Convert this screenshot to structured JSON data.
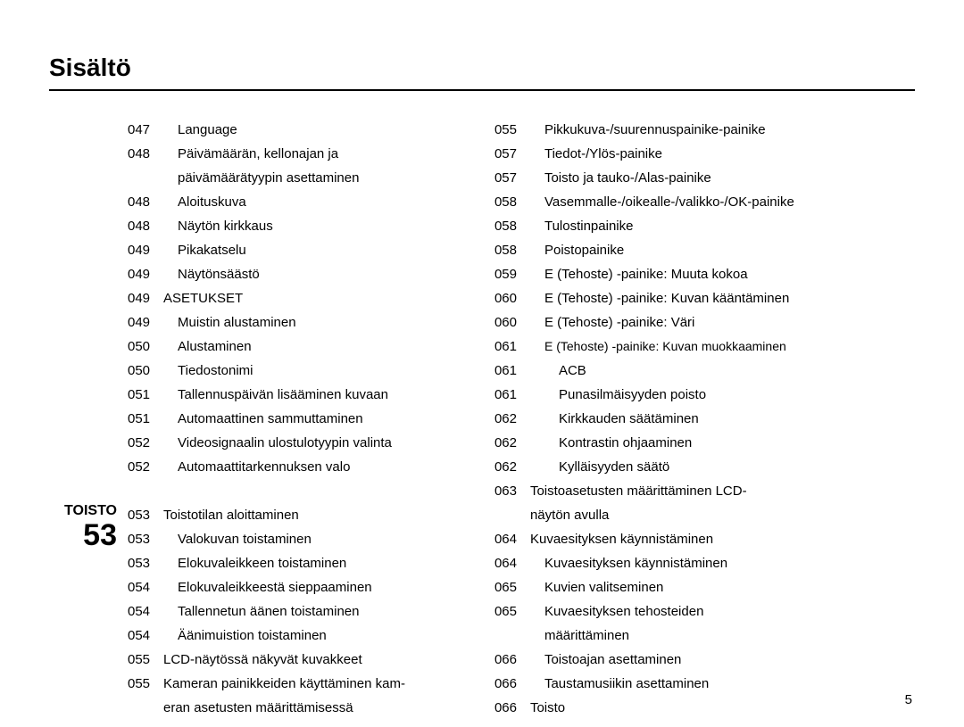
{
  "title": "Sisältö",
  "page_number": "5",
  "section": {
    "name": "TOISTO",
    "number": "53"
  },
  "col1a": [
    {
      "pg": "047",
      "txt": "Language",
      "indent": 1
    },
    {
      "pg": "048",
      "txt": "Päivämäärän, kellonajan ja",
      "indent": 1
    },
    {
      "pg": "",
      "txt": "päivämäärätyypin asettaminen",
      "indent": 1,
      "cont": true
    },
    {
      "pg": "048",
      "txt": "Aloituskuva",
      "indent": 1
    },
    {
      "pg": "048",
      "txt": "Näytön kirkkaus",
      "indent": 1
    },
    {
      "pg": "049",
      "txt": "Pikakatselu",
      "indent": 1
    },
    {
      "pg": "049",
      "txt": "Näytönsäästö",
      "indent": 1
    },
    {
      "pg": "049",
      "txt": "ASETUKSET",
      "indent": 0
    },
    {
      "pg": "049",
      "txt": "Muistin alustaminen",
      "indent": 1
    },
    {
      "pg": "050",
      "txt": "Alustaminen",
      "indent": 1
    },
    {
      "pg": "050",
      "txt": "Tiedostonimi",
      "indent": 1
    },
    {
      "pg": "051",
      "txt": "Tallennuspäivän lisääminen kuvaan",
      "indent": 1
    },
    {
      "pg": "051",
      "txt": "Automaattinen sammuttaminen",
      "indent": 1
    },
    {
      "pg": "052",
      "txt": "Videosignaalin ulostulotyypin valinta",
      "indent": 1
    },
    {
      "pg": "052",
      "txt": "Automaattitarkennuksen valo",
      "indent": 1
    }
  ],
  "col1b": [
    {
      "pg": "053",
      "txt": "Toistotilan aloittaminen",
      "indent": 0
    },
    {
      "pg": "053",
      "txt": "Valokuvan toistaminen",
      "indent": 1
    },
    {
      "pg": "053",
      "txt": "Elokuvaleikkeen toistaminen",
      "indent": 1
    },
    {
      "pg": "054",
      "txt": "Elokuvaleikkeestä sieppaaminen",
      "indent": 1
    },
    {
      "pg": "054",
      "txt": "Tallennetun äänen toistaminen",
      "indent": 1
    },
    {
      "pg": "054",
      "txt": "Äänimuistion toistaminen",
      "indent": 1
    },
    {
      "pg": "055",
      "txt": "LCD-näytössä näkyvät kuvakkeet",
      "indent": 0
    },
    {
      "pg": "055",
      "txt": "Kameran painikkeiden käyttäminen kam-",
      "indent": 0
    },
    {
      "pg": "",
      "txt": "eran asetusten määrittämisessä",
      "indent": 0,
      "cont": true
    }
  ],
  "col2": [
    {
      "pg": "055",
      "txt": "Pikkukuva-/suurennuspainike-painike",
      "indent": 1
    },
    {
      "pg": "057",
      "txt": "Tiedot-/Ylös-painike",
      "indent": 1
    },
    {
      "pg": "057",
      "txt": "Toisto ja tauko-/Alas-painike",
      "indent": 1
    },
    {
      "pg": "058",
      "txt": "Vasemmalle-/oikealle-/valikko-/OK-painike",
      "indent": 1
    },
    {
      "pg": "058",
      "txt": "Tulostinpainike",
      "indent": 1
    },
    {
      "pg": "058",
      "txt": "Poistopainike",
      "indent": 1
    },
    {
      "pg": "059",
      "txt": "E (Tehoste) -painike: Muuta kokoa",
      "indent": 1
    },
    {
      "pg": "060",
      "txt": "E (Tehoste) -painike: Kuvan kääntäminen",
      "indent": 1
    },
    {
      "pg": "060",
      "txt": "E (Tehoste) -painike: Väri",
      "indent": 1
    },
    {
      "pg": "061",
      "txt": "E (Tehoste) -painike: Kuvan muokkaaminen",
      "indent": 1,
      "small": true
    },
    {
      "pg": "061",
      "txt": "ACB",
      "indent": 2
    },
    {
      "pg": "061",
      "txt": "Punasilmäisyyden poisto",
      "indent": 2
    },
    {
      "pg": "062",
      "txt": "Kirkkauden säätäminen",
      "indent": 2
    },
    {
      "pg": "062",
      "txt": "Kontrastin ohjaaminen",
      "indent": 2
    },
    {
      "pg": "062",
      "txt": "Kylläisyyden säätö",
      "indent": 2
    },
    {
      "pg": "063",
      "txt": "Toistoasetusten määrittäminen LCD-",
      "indent": 0
    },
    {
      "pg": "",
      "txt": "näytön avulla",
      "indent": 0,
      "cont": true
    },
    {
      "pg": "064",
      "txt": "Kuvaesityksen käynnistäminen",
      "indent": 0
    },
    {
      "pg": "064",
      "txt": "Kuvaesityksen käynnistäminen",
      "indent": 1
    },
    {
      "pg": "065",
      "txt": "Kuvien valitseminen",
      "indent": 1
    },
    {
      "pg": "065",
      "txt": "Kuvaesityksen tehosteiden",
      "indent": 1
    },
    {
      "pg": "",
      "txt": "määrittäminen",
      "indent": 1,
      "cont": true
    },
    {
      "pg": "066",
      "txt": "Toistoajan asettaminen",
      "indent": 1
    },
    {
      "pg": "066",
      "txt": "Taustamusiikin asettaminen",
      "indent": 1
    },
    {
      "pg": "066",
      "txt": "Toisto",
      "indent": 0
    }
  ]
}
